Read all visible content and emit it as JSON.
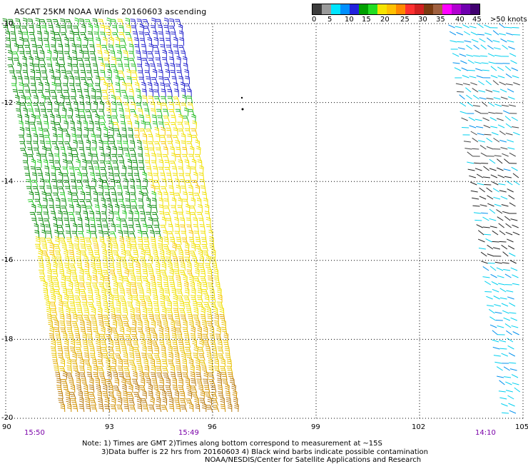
{
  "title": "ASCAT 25KM NOAA Winds 20160603 ascending",
  "legend": {
    "colors": [
      "#3c3c3c",
      "#9a9a9a",
      "#00e5ff",
      "#0090ff",
      "#2222dd",
      "#00a000",
      "#22dd22",
      "#f5e400",
      "#ffc000",
      "#ff8800",
      "#ff3030",
      "#d02020",
      "#7a3a10",
      "#a06040",
      "#ff00ff",
      "#b000d0",
      "#7000b0",
      "#400070"
    ],
    "labels": [
      "0",
      "5",
      "10",
      "15",
      "20",
      "25",
      "30",
      "35",
      "40",
      "45",
      ">50 knots"
    ],
    "units": "knots"
  },
  "axes": {
    "lon_ticks": [
      "90",
      "93",
      "96",
      "99",
      "102",
      "105"
    ],
    "lat_ticks": [
      "-10",
      "-12",
      "-14",
      "-16",
      "-18",
      "-20"
    ]
  },
  "times": [
    "15:50",
    "15:49",
    "14:10"
  ],
  "note_lines": [
    "Note: 1) Times are GMT 2)Times along bottom correspond to measurement at ~15S",
    "3)Data buffer is 22 hrs from 20160603 4) Black wind barbs indicate possible contamination"
  ],
  "credit": "NOAA/NESDIS/Center for Satellite Applications and Research",
  "map": {
    "lon_range": [
      90,
      105
    ],
    "lat_range": [
      -20,
      -10
    ],
    "grid": "dotted",
    "swaths": [
      {
        "name": "left swath",
        "lon_edges_top": [
          90,
          95.3
        ],
        "lon_edges_bottom": [
          91.7,
          96.9
        ],
        "dominant_speed_knots": "15-25"
      },
      {
        "name": "right swath",
        "lon_edges_top": [
          102.8,
          105
        ],
        "lon_edges_bottom": [
          104.4,
          105
        ],
        "dominant_speed_knots": "0-15"
      }
    ]
  }
}
